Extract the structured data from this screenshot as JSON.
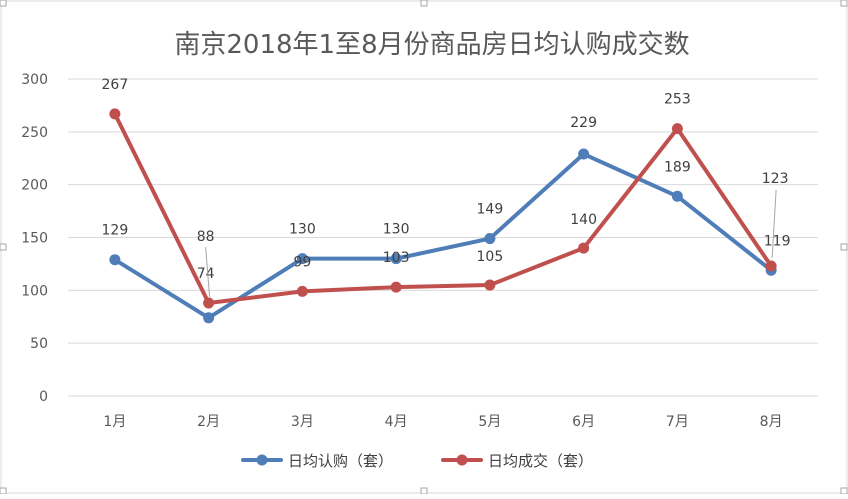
{
  "chart_data": {
    "type": "line",
    "title": "南京2018年1至8月份商品房日均认购成交数",
    "categories": [
      "1月",
      "2月",
      "3月",
      "4月",
      "5月",
      "6月",
      "7月",
      "8月"
    ],
    "ylim": [
      0,
      300
    ],
    "yticks": [
      0,
      50,
      100,
      150,
      200,
      250,
      300
    ],
    "grid": true,
    "legend_position": "bottom",
    "series": [
      {
        "name": "日均认购（套）",
        "color": "#4F7DB8",
        "values": [
          129,
          74,
          130,
          130,
          149,
          229,
          189,
          119
        ]
      },
      {
        "name": "日均成交（套）",
        "color": "#C0504D",
        "values": [
          267,
          88,
          99,
          103,
          105,
          140,
          253,
          123
        ]
      }
    ]
  }
}
